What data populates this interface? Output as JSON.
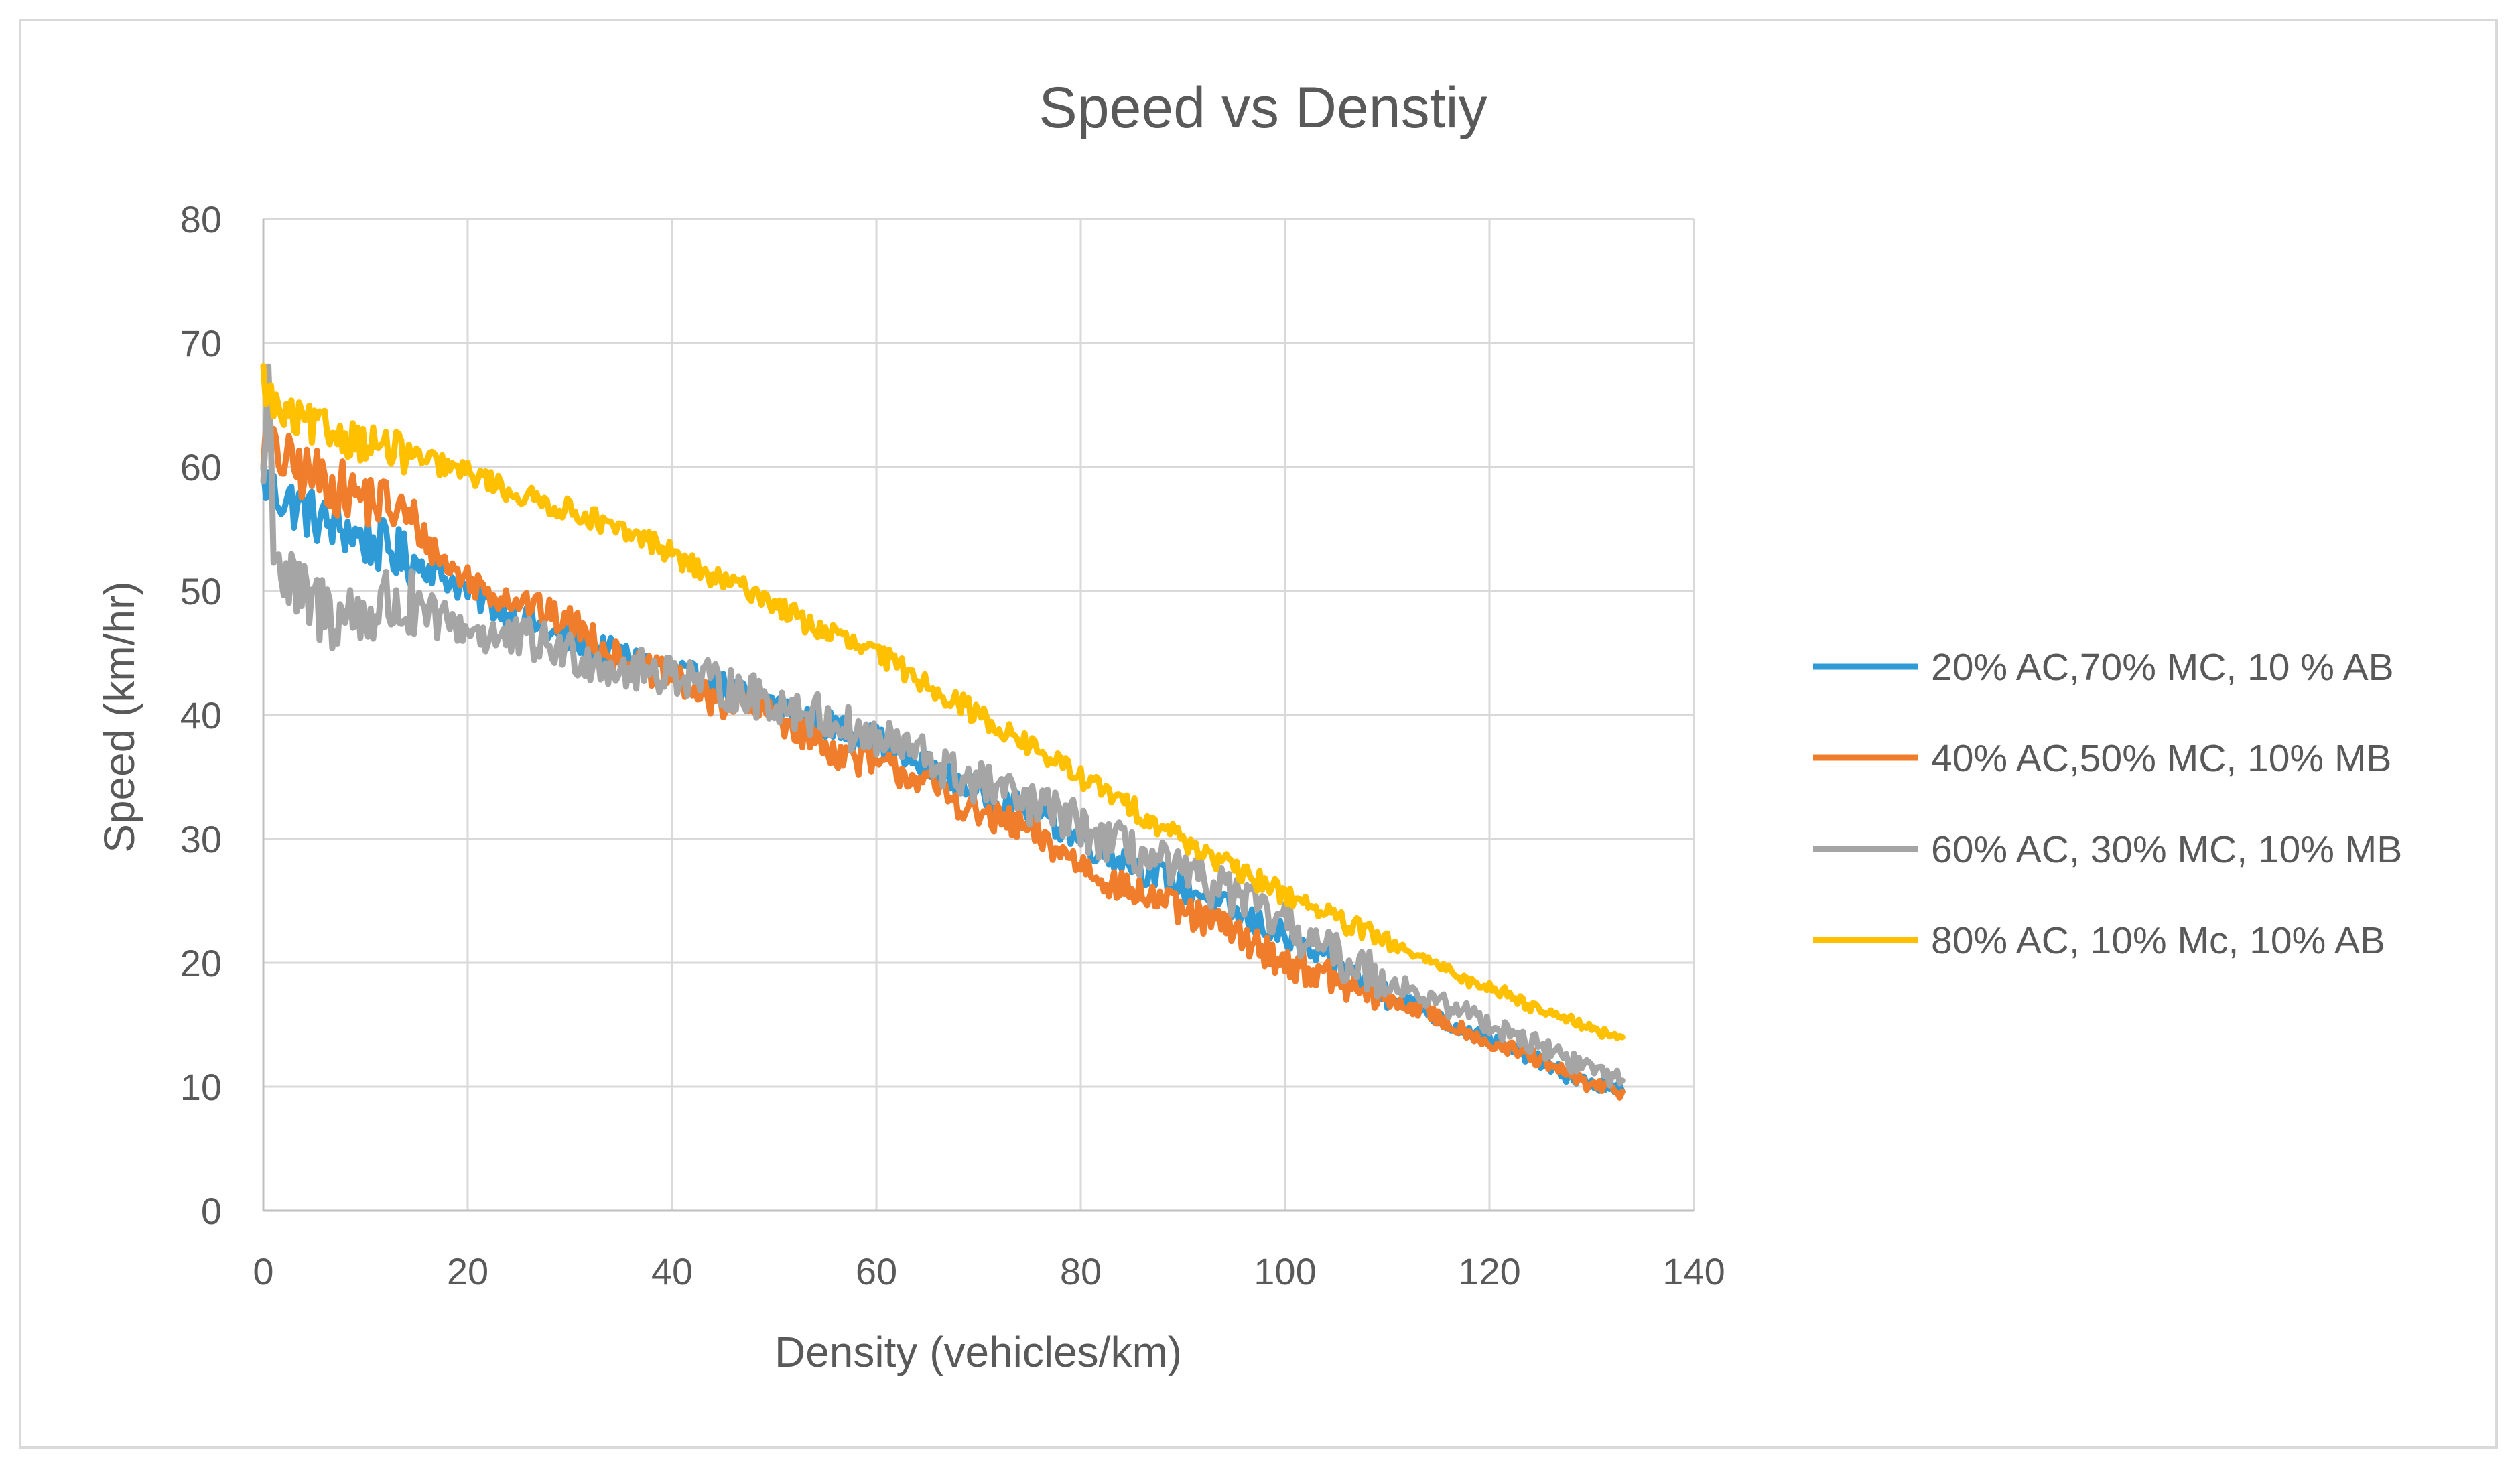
{
  "chart_data": {
    "type": "line",
    "title": "Speed vs Denstiy",
    "xlabel": "Density (vehicles/km)",
    "ylabel": "Speed (km/hr)",
    "xlim": [
      0,
      140
    ],
    "ylim": [
      0,
      80
    ],
    "x_ticks": [
      "0",
      "20",
      "40",
      "60",
      "80",
      "100",
      "120",
      "140"
    ],
    "y_ticks": [
      "0",
      "10",
      "20",
      "30",
      "40",
      "50",
      "60",
      "70",
      "80"
    ],
    "grid": true,
    "legend_position": "right",
    "series": [
      {
        "name": "20% AC,70% MC, 10 % AB",
        "color": "#2E9BD6",
        "points": [
          [
            0,
            59
          ],
          [
            1,
            58
          ],
          [
            2,
            57.5
          ],
          [
            4,
            56.5
          ],
          [
            6,
            55.5
          ],
          [
            8,
            55
          ],
          [
            10,
            54
          ],
          [
            12,
            53.5
          ],
          [
            14,
            52.5
          ],
          [
            16,
            52
          ],
          [
            18,
            51
          ],
          [
            20,
            50
          ],
          [
            22,
            49
          ],
          [
            24,
            48
          ],
          [
            26,
            47.5
          ],
          [
            28,
            46.5
          ],
          [
            30,
            46
          ],
          [
            32,
            45.5
          ],
          [
            34,
            45
          ],
          [
            36,
            44.5
          ],
          [
            38,
            44
          ],
          [
            40,
            43.5
          ],
          [
            42,
            43
          ],
          [
            44,
            42.5
          ],
          [
            46,
            42
          ],
          [
            48,
            41.5
          ],
          [
            50,
            41
          ],
          [
            52,
            40
          ],
          [
            54,
            39.5
          ],
          [
            56,
            39
          ],
          [
            58,
            38.5
          ],
          [
            60,
            38
          ],
          [
            62,
            37
          ],
          [
            64,
            36
          ],
          [
            66,
            35.5
          ],
          [
            68,
            34.5
          ],
          [
            70,
            34
          ],
          [
            72,
            33
          ],
          [
            74,
            32.5
          ],
          [
            76,
            32
          ],
          [
            78,
            31
          ],
          [
            80,
            30
          ],
          [
            82,
            29
          ],
          [
            84,
            28.5
          ],
          [
            86,
            27.5
          ],
          [
            88,
            27
          ],
          [
            90,
            26
          ],
          [
            92,
            25.5
          ],
          [
            94,
            24.5
          ],
          [
            96,
            23.5
          ],
          [
            98,
            23
          ],
          [
            100,
            22
          ],
          [
            102,
            21
          ],
          [
            104,
            20
          ],
          [
            106,
            19.5
          ],
          [
            108,
            18.5
          ],
          [
            110,
            17.5
          ],
          [
            112,
            17
          ],
          [
            114,
            16
          ],
          [
            116,
            15
          ],
          [
            118,
            14.5
          ],
          [
            120,
            14
          ],
          [
            122,
            13
          ],
          [
            124,
            12.5
          ],
          [
            126,
            11.5
          ],
          [
            128,
            10.8
          ],
          [
            130,
            10.2
          ],
          [
            133,
            9.6
          ]
        ],
        "noise": 1.2
      },
      {
        "name": "40% AC,50% MC, 10% MB",
        "color": "#F07D2C",
        "points": [
          [
            0,
            62
          ],
          [
            1,
            61
          ],
          [
            2,
            60.5
          ],
          [
            4,
            59.5
          ],
          [
            6,
            59
          ],
          [
            8,
            58
          ],
          [
            10,
            57.5
          ],
          [
            12,
            57
          ],
          [
            14,
            56
          ],
          [
            16,
            54
          ],
          [
            18,
            52
          ],
          [
            20,
            51
          ],
          [
            22,
            50
          ],
          [
            24,
            49.5
          ],
          [
            26,
            49
          ],
          [
            28,
            48
          ],
          [
            30,
            47.5
          ],
          [
            32,
            46.5
          ],
          [
            34,
            45
          ],
          [
            36,
            44
          ],
          [
            38,
            43.5
          ],
          [
            40,
            43
          ],
          [
            42,
            42
          ],
          [
            44,
            41
          ],
          [
            46,
            41
          ],
          [
            48,
            40.5
          ],
          [
            50,
            40
          ],
          [
            52,
            39
          ],
          [
            54,
            38
          ],
          [
            56,
            37
          ],
          [
            58,
            36.5
          ],
          [
            60,
            36
          ],
          [
            62,
            35.5
          ],
          [
            64,
            35
          ],
          [
            66,
            34
          ],
          [
            68,
            33
          ],
          [
            70,
            32
          ],
          [
            72,
            31.5
          ],
          [
            74,
            31
          ],
          [
            76,
            30
          ],
          [
            78,
            29
          ],
          [
            80,
            28
          ],
          [
            82,
            27
          ],
          [
            84,
            26
          ],
          [
            86,
            25.5
          ],
          [
            88,
            25
          ],
          [
            90,
            24
          ],
          [
            92,
            23.5
          ],
          [
            94,
            23
          ],
          [
            96,
            22
          ],
          [
            98,
            21
          ],
          [
            100,
            20
          ],
          [
            102,
            19.5
          ],
          [
            104,
            19
          ],
          [
            106,
            18
          ],
          [
            108,
            17.5
          ],
          [
            110,
            17
          ],
          [
            112,
            16.5
          ],
          [
            114,
            16
          ],
          [
            116,
            15
          ],
          [
            118,
            14.5
          ],
          [
            120,
            13.5
          ],
          [
            122,
            13
          ],
          [
            124,
            12.5
          ],
          [
            126,
            11.5
          ],
          [
            128,
            11
          ],
          [
            130,
            10
          ],
          [
            133,
            9.6
          ]
        ],
        "noise": 1.3
      },
      {
        "name": "60% AC, 30% MC, 10% MB",
        "color": "#A5A5A5",
        "points": [
          [
            0,
            59
          ],
          [
            0.5,
            67
          ],
          [
            1,
            55
          ],
          [
            2,
            51
          ],
          [
            4,
            49
          ],
          [
            6,
            48.5
          ],
          [
            8,
            48
          ],
          [
            10,
            48
          ],
          [
            12,
            49
          ],
          [
            14,
            48.5
          ],
          [
            16,
            48
          ],
          [
            18,
            47.5
          ],
          [
            20,
            47
          ],
          [
            22,
            46.5
          ],
          [
            24,
            46
          ],
          [
            26,
            46
          ],
          [
            28,
            45.5
          ],
          [
            30,
            45
          ],
          [
            32,
            44.5
          ],
          [
            34,
            44
          ],
          [
            36,
            43.5
          ],
          [
            38,
            43.5
          ],
          [
            40,
            43.5
          ],
          [
            42,
            43
          ],
          [
            44,
            42.5
          ],
          [
            46,
            42
          ],
          [
            48,
            41.5
          ],
          [
            50,
            41
          ],
          [
            52,
            40.5
          ],
          [
            54,
            40
          ],
          [
            56,
            39.5
          ],
          [
            58,
            38.5
          ],
          [
            60,
            38
          ],
          [
            62,
            37.5
          ],
          [
            64,
            37
          ],
          [
            66,
            36
          ],
          [
            68,
            35
          ],
          [
            70,
            34.5
          ],
          [
            72,
            34
          ],
          [
            74,
            33
          ],
          [
            76,
            32.5
          ],
          [
            78,
            32
          ],
          [
            80,
            31
          ],
          [
            82,
            30
          ],
          [
            84,
            29.5
          ],
          [
            86,
            28.5
          ],
          [
            88,
            28
          ],
          [
            90,
            27
          ],
          [
            92,
            26.5
          ],
          [
            94,
            26
          ],
          [
            96,
            25
          ],
          [
            98,
            24
          ],
          [
            100,
            23
          ],
          [
            102,
            22
          ],
          [
            104,
            21
          ],
          [
            106,
            20
          ],
          [
            108,
            19.5
          ],
          [
            110,
            18.5
          ],
          [
            112,
            18
          ],
          [
            114,
            17
          ],
          [
            116,
            16.5
          ],
          [
            118,
            16
          ],
          [
            120,
            15
          ],
          [
            122,
            14.5
          ],
          [
            124,
            13.5
          ],
          [
            126,
            13
          ],
          [
            128,
            12
          ],
          [
            130,
            11.5
          ],
          [
            133,
            10.5
          ]
        ],
        "noise": 1.8
      },
      {
        "name": "80% AC, 10% Mc, 10% AB",
        "color": "#FFC000",
        "points": [
          [
            0,
            67
          ],
          [
            1,
            65
          ],
          [
            2,
            64
          ],
          [
            4,
            63.5
          ],
          [
            6,
            63
          ],
          [
            8,
            62.5
          ],
          [
            10,
            62
          ],
          [
            12,
            61.5
          ],
          [
            14,
            61
          ],
          [
            16,
            60.5
          ],
          [
            18,
            60
          ],
          [
            20,
            59.5
          ],
          [
            22,
            59
          ],
          [
            24,
            58
          ],
          [
            26,
            57.5
          ],
          [
            28,
            57
          ],
          [
            30,
            56.5
          ],
          [
            32,
            56
          ],
          [
            34,
            55
          ],
          [
            36,
            54.5
          ],
          [
            38,
            54
          ],
          [
            40,
            53
          ],
          [
            42,
            52
          ],
          [
            44,
            51
          ],
          [
            46,
            50.5
          ],
          [
            48,
            50
          ],
          [
            50,
            49
          ],
          [
            52,
            48
          ],
          [
            54,
            47
          ],
          [
            56,
            46.5
          ],
          [
            58,
            45.5
          ],
          [
            60,
            45
          ],
          [
            62,
            44
          ],
          [
            64,
            43
          ],
          [
            66,
            42
          ],
          [
            68,
            41
          ],
          [
            70,
            40
          ],
          [
            72,
            39
          ],
          [
            74,
            38
          ],
          [
            76,
            37
          ],
          [
            78,
            36
          ],
          [
            80,
            35
          ],
          [
            82,
            34
          ],
          [
            84,
            33
          ],
          [
            86,
            32
          ],
          [
            88,
            31
          ],
          [
            90,
            30
          ],
          [
            92,
            29
          ],
          [
            94,
            28
          ],
          [
            96,
            27
          ],
          [
            98,
            26.5
          ],
          [
            100,
            25.5
          ],
          [
            102,
            25
          ],
          [
            104,
            24
          ],
          [
            106,
            23
          ],
          [
            108,
            22.5
          ],
          [
            110,
            21.5
          ],
          [
            112,
            21
          ],
          [
            114,
            20
          ],
          [
            116,
            19.5
          ],
          [
            118,
            18.5
          ],
          [
            120,
            18
          ],
          [
            122,
            17.5
          ],
          [
            124,
            16.5
          ],
          [
            126,
            16
          ],
          [
            128,
            15.5
          ],
          [
            130,
            14.5
          ],
          [
            133,
            14
          ]
        ],
        "noise": 0.9
      }
    ]
  }
}
